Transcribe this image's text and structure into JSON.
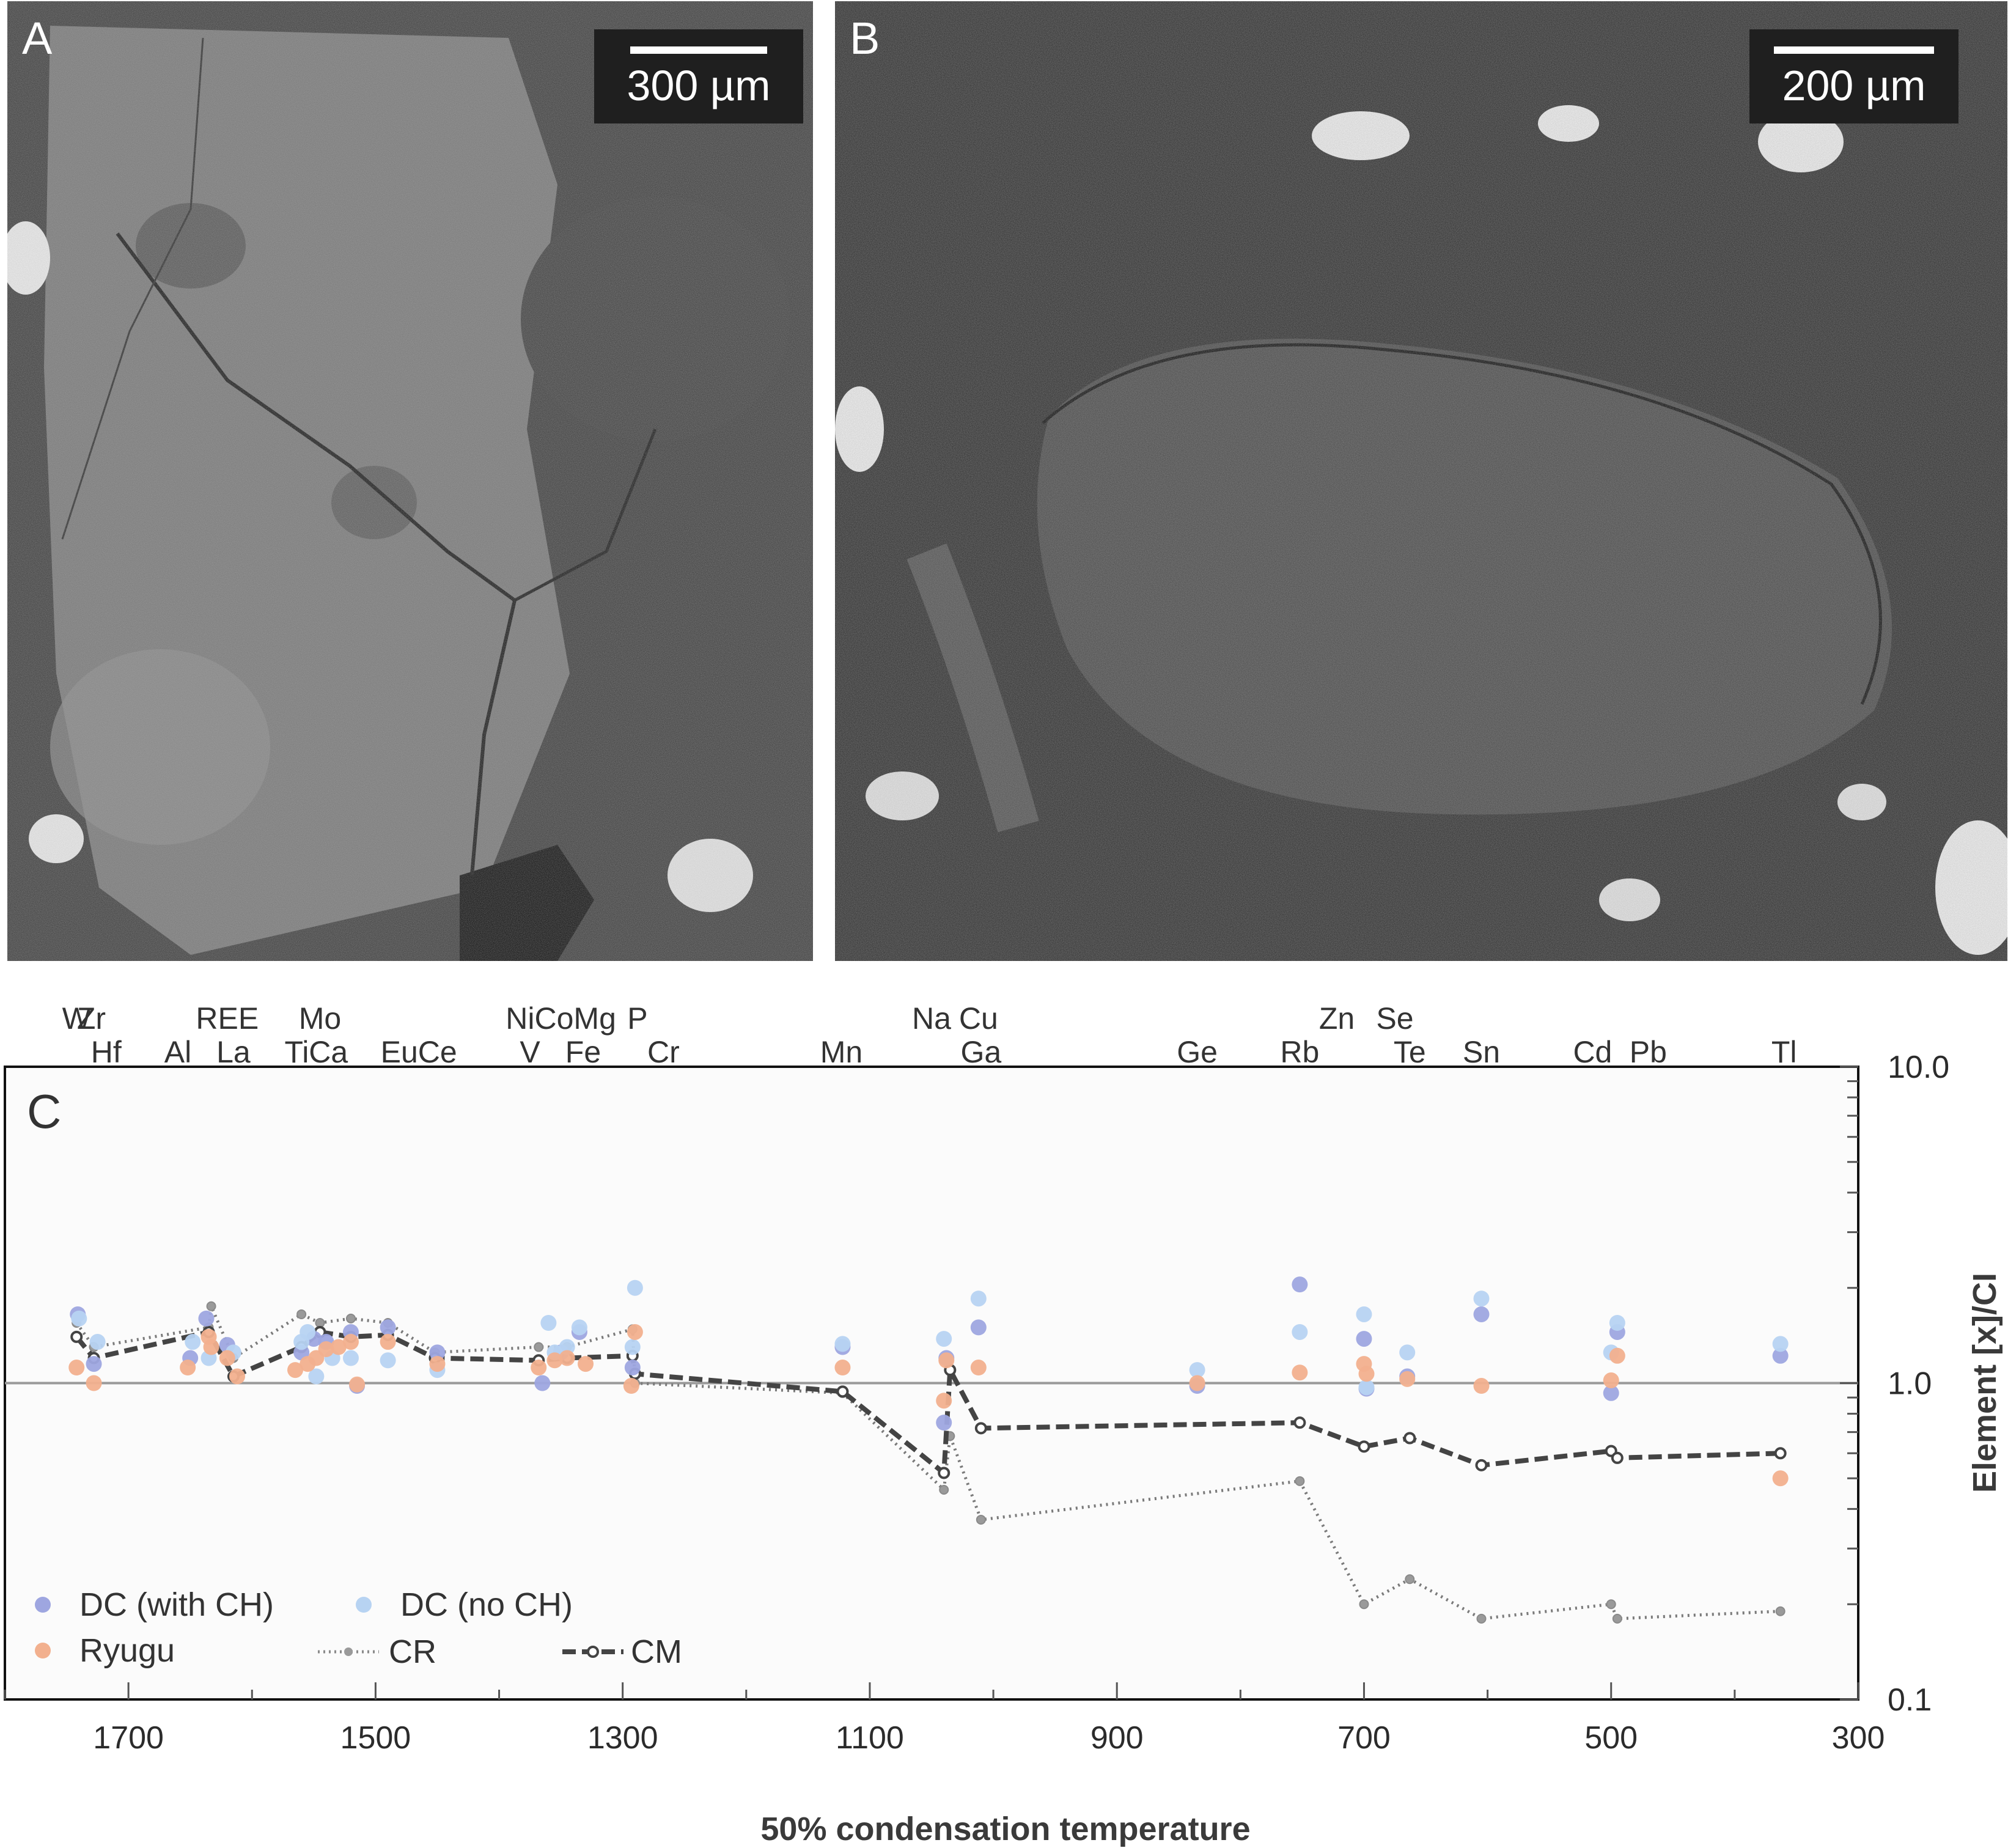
{
  "panels": {
    "a": {
      "letter": "A",
      "scale_label": "300 µm"
    },
    "b": {
      "letter": "B",
      "scale_label": "200 µm"
    }
  },
  "chart_data": {
    "type": "scatter",
    "panel_label": "C",
    "xlabel": "50% condensation temperature",
    "ylabel": "Element [x]/CI",
    "x_reversed": true,
    "xlim": [
      1800,
      300
    ],
    "ylim": [
      0.1,
      10.0
    ],
    "y_scale": "log",
    "x_ticks": [
      1700,
      1500,
      1300,
      1100,
      900,
      700,
      500,
      300
    ],
    "y_ticks": [
      "10.0",
      "1.0",
      "0.1"
    ],
    "reference_line": 1.0,
    "legend_position": "bottom-left",
    "element_labels_top": [
      {
        "text": "W",
        "x": 1742
      },
      {
        "text": "Zr",
        "x": 1730
      },
      {
        "text": "REE",
        "x": 1620
      },
      {
        "text": "Mo",
        "x": 1545
      },
      {
        "text": "NiCoMg",
        "x": 1350
      },
      {
        "text": "P",
        "x": 1288
      },
      {
        "text": "Na",
        "x": 1050
      },
      {
        "text": "Cu",
        "x": 1012
      },
      {
        "text": "Zn",
        "x": 722
      },
      {
        "text": "Se",
        "x": 675
      }
    ],
    "element_labels_bottom": [
      {
        "text": "Hf",
        "x": 1718
      },
      {
        "text": "Al",
        "x": 1660
      },
      {
        "text": "La",
        "x": 1615
      },
      {
        "text": "TiCa",
        "x": 1548
      },
      {
        "text": "EuCe",
        "x": 1465
      },
      {
        "text": "V",
        "x": 1375
      },
      {
        "text": "Fe",
        "x": 1332
      },
      {
        "text": "Cr",
        "x": 1267
      },
      {
        "text": "Mn",
        "x": 1123
      },
      {
        "text": "Ga",
        "x": 1010
      },
      {
        "text": "Ge",
        "x": 835
      },
      {
        "text": "Rb",
        "x": 752
      },
      {
        "text": "Te",
        "x": 663
      },
      {
        "text": "Sn",
        "x": 605
      },
      {
        "text": "Cd",
        "x": 515
      },
      {
        "text": "Pb",
        "x": 470
      },
      {
        "text": "Tl",
        "x": 360
      }
    ],
    "series": [
      {
        "name": "DC (with CH)",
        "color": "#9ea6e0",
        "style": "points",
        "points": [
          [
            1741,
            1.65
          ],
          [
            1728,
            1.15
          ],
          [
            1650,
            1.2
          ],
          [
            1637,
            1.6
          ],
          [
            1620,
            1.32
          ],
          [
            1560,
            1.25
          ],
          [
            1550,
            1.38
          ],
          [
            1540,
            1.35
          ],
          [
            1520,
            1.45
          ],
          [
            1515,
            0.98
          ],
          [
            1490,
            1.5
          ],
          [
            1450,
            1.25
          ],
          [
            1365,
            1.0
          ],
          [
            1350,
            1.25
          ],
          [
            1335,
            1.45
          ],
          [
            1292,
            1.12
          ],
          [
            1122,
            1.3
          ],
          [
            1040,
            0.75
          ],
          [
            1038,
            1.2
          ],
          [
            1012,
            1.5
          ],
          [
            835,
            0.98
          ],
          [
            752,
            2.05
          ],
          [
            700,
            1.38
          ],
          [
            698,
            0.96
          ],
          [
            665,
            1.05
          ],
          [
            605,
            1.65
          ],
          [
            500,
            0.93
          ],
          [
            495,
            1.45
          ],
          [
            363,
            1.22
          ]
        ]
      },
      {
        "name": "DC (no CH)",
        "color": "#b7d3f2",
        "style": "points",
        "points": [
          [
            1740,
            1.6
          ],
          [
            1725,
            1.35
          ],
          [
            1648,
            1.35
          ],
          [
            1635,
            1.2
          ],
          [
            1615,
            1.25
          ],
          [
            1560,
            1.35
          ],
          [
            1555,
            1.45
          ],
          [
            1548,
            1.05
          ],
          [
            1535,
            1.2
          ],
          [
            1520,
            1.2
          ],
          [
            1490,
            1.18
          ],
          [
            1450,
            1.1
          ],
          [
            1360,
            1.55
          ],
          [
            1355,
            1.25
          ],
          [
            1345,
            1.3
          ],
          [
            1335,
            1.5
          ],
          [
            1290,
            2.0
          ],
          [
            1292,
            1.3
          ],
          [
            1122,
            1.33
          ],
          [
            1040,
            1.38
          ],
          [
            1012,
            1.85
          ],
          [
            835,
            1.1
          ],
          [
            752,
            1.45
          ],
          [
            700,
            1.65
          ],
          [
            698,
            0.97
          ],
          [
            665,
            1.25
          ],
          [
            605,
            1.85
          ],
          [
            500,
            1.25
          ],
          [
            495,
            1.55
          ],
          [
            363,
            1.33
          ]
        ]
      },
      {
        "name": "Ryugu",
        "color": "#f2b08e",
        "style": "points",
        "points": [
          [
            1742,
            1.12
          ],
          [
            1728,
            1.0
          ],
          [
            1652,
            1.12
          ],
          [
            1635,
            1.4
          ],
          [
            1633,
            1.3
          ],
          [
            1620,
            1.2
          ],
          [
            1612,
            1.05
          ],
          [
            1565,
            1.1
          ],
          [
            1555,
            1.15
          ],
          [
            1548,
            1.2
          ],
          [
            1540,
            1.28
          ],
          [
            1530,
            1.3
          ],
          [
            1520,
            1.35
          ],
          [
            1515,
            0.99
          ],
          [
            1490,
            1.35
          ],
          [
            1450,
            1.15
          ],
          [
            1368,
            1.12
          ],
          [
            1355,
            1.18
          ],
          [
            1345,
            1.2
          ],
          [
            1330,
            1.15
          ],
          [
            1290,
            1.45
          ],
          [
            1293,
            0.98
          ],
          [
            1122,
            1.12
          ],
          [
            1040,
            0.88
          ],
          [
            1038,
            1.18
          ],
          [
            1012,
            1.12
          ],
          [
            835,
            1.0
          ],
          [
            752,
            1.08
          ],
          [
            700,
            1.15
          ],
          [
            698,
            1.07
          ],
          [
            665,
            1.03
          ],
          [
            605,
            0.98
          ],
          [
            500,
            1.02
          ],
          [
            495,
            1.22
          ],
          [
            363,
            0.5
          ]
        ]
      },
      {
        "name": "CR",
        "color": "#9a9a9a",
        "style": "dotted-line",
        "points": [
          [
            1742,
            1.55
          ],
          [
            1728,
            1.3
          ],
          [
            1635,
            1.5
          ],
          [
            1633,
            1.75
          ],
          [
            1615,
            1.2
          ],
          [
            1560,
            1.65
          ],
          [
            1545,
            1.55
          ],
          [
            1520,
            1.6
          ],
          [
            1490,
            1.55
          ],
          [
            1452,
            1.25
          ],
          [
            1368,
            1.3
          ],
          [
            1345,
            1.3
          ],
          [
            1292,
            1.48
          ],
          [
            1290,
            1.0
          ],
          [
            1122,
            0.93
          ],
          [
            1040,
            0.46
          ],
          [
            1035,
            0.68
          ],
          [
            1010,
            0.37
          ],
          [
            752,
            0.49
          ],
          [
            700,
            0.2
          ],
          [
            663,
            0.24
          ],
          [
            605,
            0.18
          ],
          [
            500,
            0.2
          ],
          [
            495,
            0.18
          ],
          [
            363,
            0.19
          ]
        ]
      },
      {
        "name": "CM",
        "color": "#555555",
        "style": "dashed-line",
        "points": [
          [
            1742,
            1.4
          ],
          [
            1728,
            1.2
          ],
          [
            1635,
            1.45
          ],
          [
            1615,
            1.05
          ],
          [
            1560,
            1.3
          ],
          [
            1545,
            1.45
          ],
          [
            1520,
            1.4
          ],
          [
            1490,
            1.42
          ],
          [
            1452,
            1.2
          ],
          [
            1368,
            1.18
          ],
          [
            1345,
            1.2
          ],
          [
            1292,
            1.22
          ],
          [
            1290,
            1.07
          ],
          [
            1122,
            0.94
          ],
          [
            1040,
            0.52
          ],
          [
            1035,
            1.1
          ],
          [
            1010,
            0.72
          ],
          [
            752,
            0.75
          ],
          [
            700,
            0.63
          ],
          [
            663,
            0.67
          ],
          [
            605,
            0.55
          ],
          [
            500,
            0.61
          ],
          [
            495,
            0.58
          ],
          [
            363,
            0.6
          ]
        ]
      }
    ]
  }
}
